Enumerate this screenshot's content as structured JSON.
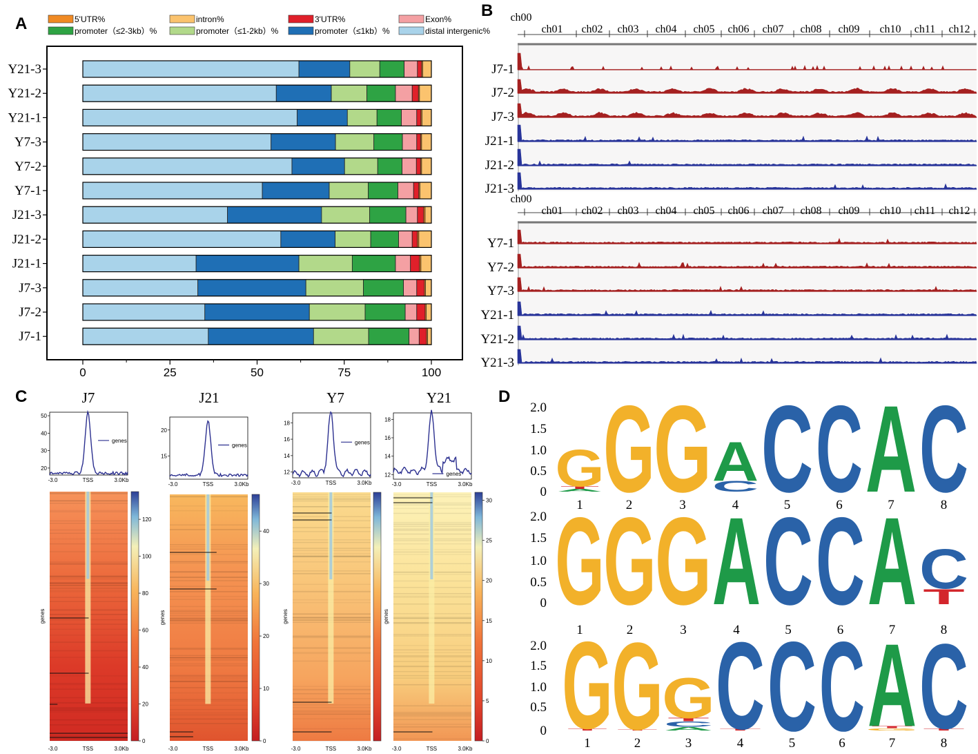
{
  "panels": {
    "a": "A",
    "b": "B",
    "c": "C",
    "d": "D"
  },
  "colors": {
    "utr5": "#f08a24",
    "intron": "#fbc36e",
    "utr3": "#e0202a",
    "exon": "#f4a0a3",
    "p23": "#2ea344",
    "p12": "#b2d98a",
    "p1": "#1f6fb5",
    "distal": "#a9d3ea",
    "red_track": "#a52020",
    "blue_track": "#28349a",
    "logoG": "#f2b12a",
    "logoA": "#1e9a48",
    "logoC": "#2a62a8",
    "logoT": "#d3262c"
  },
  "chart_data": [
    {
      "type": "bar",
      "orientation": "horizontal-stacked",
      "legend": [
        {
          "key": "utr5",
          "label": "5'UTR%"
        },
        {
          "key": "intron",
          "label": "intron%"
        },
        {
          "key": "utr3",
          "label": "3'UTR%"
        },
        {
          "key": "exon",
          "label": "Exon%"
        },
        {
          "key": "p23",
          "label": "promoter（≤2-3kb）%"
        },
        {
          "key": "p12",
          "label": "promoter（≤1-2kb）%"
        },
        {
          "key": "p1",
          "label": "promoter（≤1kb）%"
        },
        {
          "key": "distal",
          "label": "distal intergenic%"
        }
      ],
      "stack_order": [
        "distal",
        "p1",
        "p12",
        "p23",
        "exon",
        "utr3",
        "utr5",
        "intron"
      ],
      "categories": [
        "Y21-3",
        "Y21-2",
        "Y21-1",
        "Y7-3",
        "Y7-2",
        "Y7-1",
        "J21-3",
        "J21-2",
        "J21-1",
        "J7-3",
        "J7-2",
        "J7-1"
      ],
      "series": [
        {
          "name": "distal",
          "values": [
            62,
            55.5,
            61.5,
            54,
            60,
            51.5,
            41.5,
            56.8,
            32.5,
            33,
            35,
            36
          ]
        },
        {
          "name": "p1",
          "values": [
            14.6,
            15.8,
            14.4,
            18.5,
            15.1,
            19.2,
            27,
            15.6,
            29.5,
            31,
            30,
            30.2
          ]
        },
        {
          "name": "p12",
          "values": [
            8.6,
            10.2,
            8.5,
            11,
            9.5,
            11.2,
            13.8,
            10.2,
            15.3,
            16.5,
            16,
            15.8
          ]
        },
        {
          "name": "p23",
          "values": [
            7,
            8.2,
            7,
            8.2,
            7,
            8.5,
            10.4,
            8,
            12.4,
            11.5,
            11.5,
            11.6
          ]
        },
        {
          "name": "exon",
          "values": [
            3.8,
            4.8,
            4.4,
            4.1,
            4.1,
            4.5,
            3.3,
            3.9,
            4.3,
            3.8,
            3.3,
            2.9
          ]
        },
        {
          "name": "utr3",
          "values": [
            1.2,
            1.8,
            1.2,
            1.1,
            1.2,
            1.5,
            1.8,
            1.5,
            2.6,
            2.2,
            2.4,
            2.1
          ]
        },
        {
          "name": "utr5",
          "values": [
            0.3,
            0.3,
            0.3,
            0.3,
            0.3,
            0.3,
            0.4,
            0.4,
            0.4,
            0.3,
            0.3,
            0.3
          ]
        },
        {
          "name": "intron",
          "values": [
            2.5,
            3.4,
            2.7,
            2.8,
            2.8,
            3.3,
            1.8,
            3.6,
            3,
            1.7,
            1.5,
            1.1
          ]
        }
      ],
      "xlim": [
        0,
        100
      ],
      "xticks": [
        0,
        25,
        50,
        75,
        100
      ]
    },
    {
      "type": "line",
      "name": "genome-tracks",
      "chromosomes": [
        "ch00",
        "ch01",
        "ch02",
        "ch03",
        "ch04",
        "ch05",
        "ch06",
        "ch07",
        "ch08",
        "ch09",
        "ch10",
        "ch11",
        "ch12"
      ],
      "groups": [
        {
          "tracks": [
            {
              "label": "J7-1",
              "color": "red"
            },
            {
              "label": "J7-2",
              "color": "red"
            },
            {
              "label": "J7-3",
              "color": "red"
            },
            {
              "label": "J21-1",
              "color": "blue"
            },
            {
              "label": "J21-2",
              "color": "blue"
            },
            {
              "label": "J21-3",
              "color": "blue"
            }
          ]
        },
        {
          "tracks": [
            {
              "label": "Y7-1",
              "color": "red"
            },
            {
              "label": "Y7-2",
              "color": "red"
            },
            {
              "label": "Y7-3",
              "color": "red"
            },
            {
              "label": "Y21-1",
              "color": "blue"
            },
            {
              "label": "Y21-2",
              "color": "blue"
            },
            {
              "label": "Y21-3",
              "color": "blue"
            }
          ]
        }
      ]
    },
    {
      "type": "heatmap",
      "name": "TSS-profiles",
      "x_ticks": [
        "-3.0",
        "TSS",
        "3.0Kb"
      ],
      "row_label": "genes",
      "legend_label": "genes",
      "samples": [
        {
          "title": "J7",
          "profile_yticks": [
            "20",
            "30",
            "40",
            "50"
          ],
          "profile_ylim": [
            16,
            52
          ],
          "baseline": 17,
          "peak": 52,
          "cbar_ticks": [
            "0",
            "20",
            "40",
            "60",
            "80",
            "100",
            "120"
          ],
          "cbar_max": 135,
          "bg": "red"
        },
        {
          "title": "J21",
          "profile_yticks": [
            "15",
            "20"
          ],
          "profile_ylim": [
            10.5,
            22.5
          ],
          "baseline": 11.3,
          "peak": 21.8,
          "cbar_ticks": [
            "0",
            "10",
            "20",
            "30",
            "40"
          ],
          "cbar_max": 47,
          "bg": "orange"
        },
        {
          "title": "Y7",
          "profile_yticks": [
            "12",
            "14",
            "16",
            "18"
          ],
          "profile_ylim": [
            11.3,
            19.2
          ],
          "baseline": 11.9,
          "peak": 19.2,
          "cbar_ticks": [],
          "cbar_max": 0,
          "bg": "light"
        },
        {
          "title": "Y21",
          "profile_yticks": [
            "12",
            "14",
            "16",
            "18"
          ],
          "profile_ylim": [
            11.5,
            18.7
          ],
          "baseline": 12.4,
          "peak": 18.7,
          "cbar_ticks": [
            "0",
            "5",
            "10",
            "15",
            "20",
            "25",
            "30"
          ],
          "cbar_max": 31,
          "bg": "yellow"
        }
      ]
    },
    {
      "type": "table",
      "name": "sequence-logos",
      "yticks": [
        "0",
        "0.5",
        "1.0",
        "1.5",
        "2.0"
      ],
      "positions": [
        "1",
        "2",
        "3",
        "4",
        "5",
        "6",
        "7",
        "8"
      ],
      "motifs": [
        {
          "letters": [
            [
              {
                "b": "A",
                "h": 0.06
              },
              {
                "b": "T",
                "h": 0.06
              },
              {
                "b": "G",
                "h": 0.85
              }
            ],
            [
              {
                "b": "G",
                "h": 2.0
              }
            ],
            [
              {
                "b": "G",
                "h": 2.0
              }
            ],
            [
              {
                "b": "C",
                "h": 0.25
              },
              {
                "b": "A",
                "h": 0.9
              }
            ],
            [
              {
                "b": "C",
                "h": 2.0
              }
            ],
            [
              {
                "b": "C",
                "h": 2.0
              }
            ],
            [
              {
                "b": "A",
                "h": 2.0
              }
            ],
            [
              {
                "b": "C",
                "h": 2.0
              }
            ]
          ]
        },
        {
          "letters": [
            [
              {
                "b": "G",
                "h": 2.0
              }
            ],
            [
              {
                "b": "G",
                "h": 2.0
              }
            ],
            [
              {
                "b": "G",
                "h": 2.0
              }
            ],
            [
              {
                "b": "A",
                "h": 2.0
              }
            ],
            [
              {
                "b": "C",
                "h": 2.0
              }
            ],
            [
              {
                "b": "C",
                "h": 2.0
              }
            ],
            [
              {
                "b": "A",
                "h": 2.0
              }
            ],
            [
              {
                "b": "T",
                "h": 0.35
              },
              {
                "b": "C",
                "h": 0.9
              }
            ]
          ]
        },
        {
          "letters": [
            [
              {
                "b": "T",
                "h": 0.05
              },
              {
                "b": "G",
                "h": 1.95
              }
            ],
            [
              {
                "b": "T",
                "h": 0.03
              },
              {
                "b": "G",
                "h": 1.95
              }
            ],
            [
              {
                "b": "A",
                "h": 0.08
              },
              {
                "b": "C",
                "h": 0.12
              },
              {
                "b": "T",
                "h": 0.08
              },
              {
                "b": "G",
                "h": 0.9
              }
            ],
            [
              {
                "b": "T",
                "h": 0.04
              },
              {
                "b": "C",
                "h": 1.95
              }
            ],
            [
              {
                "b": "C",
                "h": 2.0
              }
            ],
            [
              {
                "b": "C",
                "h": 2.0
              }
            ],
            [
              {
                "b": "G",
                "h": 0.05
              },
              {
                "b": "T",
                "h": 0.05
              },
              {
                "b": "A",
                "h": 1.85
              }
            ],
            [
              {
                "b": "T",
                "h": 0.05
              },
              {
                "b": "C",
                "h": 1.9
              }
            ]
          ]
        }
      ]
    }
  ]
}
